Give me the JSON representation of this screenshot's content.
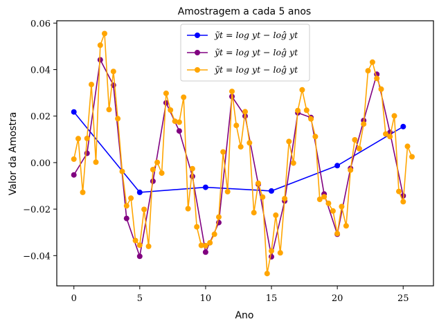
{
  "chart_data": {
    "type": "line",
    "title": "Amostragem a cada 5 anos",
    "xlabel": "Ano",
    "ylabel": "Valor da Amostra",
    "xlim": [
      -1.3,
      27.3
    ],
    "ylim": [
      -0.053,
      0.061
    ],
    "xticks": [
      0,
      5,
      10,
      15,
      20,
      25
    ],
    "xtick_labels": [
      "0",
      "5",
      "10",
      "15",
      "20",
      "25"
    ],
    "yticks": [
      -0.04,
      -0.02,
      0.0,
      0.02,
      0.04,
      0.06
    ],
    "ytick_labels": [
      "−0.04",
      "−0.02",
      "0.00",
      "0.02",
      "0.04",
      "0.06"
    ],
    "grid": false,
    "legend_position": "top-center",
    "series": [
      {
        "name": "ỹt = log yt − loĝ yt",
        "color": "#0000ff",
        "x": [
          0,
          5,
          10,
          15,
          20,
          25
        ],
        "y": [
          0.0218,
          -0.0128,
          -0.0106,
          -0.0122,
          -0.0013,
          0.0155
        ]
      },
      {
        "name": "ỹt = log yt − loĝ yt",
        "color": "#800080",
        "x": [
          0,
          1,
          2,
          3,
          4,
          5,
          6,
          7,
          8,
          9,
          10,
          11,
          12,
          13,
          14,
          15,
          16,
          17,
          18,
          19,
          20,
          21,
          22,
          23,
          24,
          25
        ],
        "y": [
          -0.0053,
          0.004,
          0.0442,
          0.0333,
          -0.024,
          -0.0403,
          -0.008,
          0.0257,
          0.0136,
          -0.0059,
          -0.0385,
          -0.0258,
          0.0284,
          0.02,
          -0.0093,
          -0.0405,
          -0.0165,
          0.0214,
          0.0194,
          -0.0135,
          -0.0308,
          -0.0025,
          0.0181,
          0.038,
          0.013,
          -0.0143
        ]
      },
      {
        "name": "ỹt = log yt − loĝ yt",
        "color": "#ffa500",
        "x": [
          0,
          0.33,
          0.67,
          1,
          1.33,
          1.67,
          2,
          2.33,
          2.67,
          3,
          3.33,
          3.67,
          4,
          4.33,
          4.67,
          5,
          5.33,
          5.67,
          6,
          6.33,
          6.67,
          7,
          7.33,
          7.67,
          8,
          8.33,
          8.67,
          9,
          9.33,
          9.67,
          10,
          10.33,
          10.67,
          11,
          11.33,
          11.67,
          12,
          12.33,
          12.67,
          13,
          13.33,
          13.67,
          14,
          14.33,
          14.67,
          15,
          15.33,
          15.67,
          16,
          16.33,
          16.67,
          17,
          17.33,
          17.67,
          18,
          18.33,
          18.67,
          19,
          19.33,
          19.67,
          20,
          20.33,
          20.67,
          21,
          21.33,
          21.67,
          22,
          22.33,
          22.67,
          23,
          23.33,
          23.67,
          24,
          24.33,
          24.67,
          25,
          25.33,
          25.67
        ],
        "y": [
          0.0015,
          0.0103,
          -0.0128,
          0.0104,
          0.0336,
          0.0002,
          0.0505,
          0.0555,
          0.0228,
          0.0392,
          0.0189,
          -0.0038,
          -0.0186,
          -0.0153,
          -0.0335,
          -0.0355,
          -0.0201,
          -0.036,
          -0.003,
          0.0001,
          -0.0045,
          0.0298,
          0.0226,
          0.0178,
          0.0174,
          0.0281,
          -0.0198,
          -0.0026,
          -0.0276,
          -0.0356,
          -0.0357,
          -0.0345,
          -0.0308,
          -0.0234,
          0.0046,
          -0.0125,
          0.0306,
          0.016,
          0.0068,
          0.0219,
          0.0085,
          -0.0215,
          -0.0089,
          -0.0148,
          -0.0477,
          -0.038,
          -0.0226,
          -0.0388,
          -0.0155,
          0.0091,
          -0.0002,
          0.0224,
          0.0313,
          0.0225,
          0.0188,
          0.0112,
          -0.0158,
          -0.0147,
          -0.0175,
          -0.0208,
          -0.0305,
          -0.0189,
          -0.0272,
          -0.0032,
          0.0098,
          0.006,
          0.0166,
          0.0395,
          0.0432,
          0.0362,
          0.0316,
          0.0123,
          0.0112,
          0.0201,
          -0.0124,
          -0.0168,
          0.007,
          0.0025
        ]
      }
    ]
  }
}
